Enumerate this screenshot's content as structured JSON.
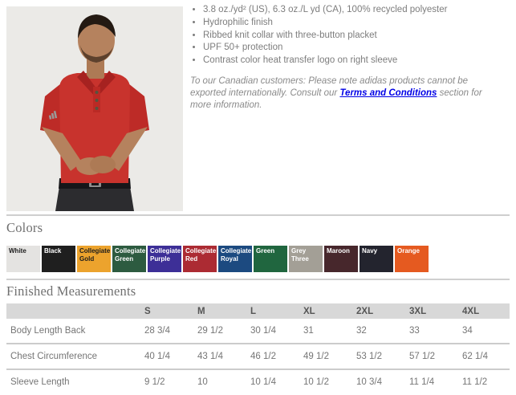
{
  "theme": {
    "link_color": "#0000e6",
    "table_header_bg": "#d8d8d8",
    "rule_color": "#cfcfcf",
    "heading_color": "#707070",
    "body_text_color": "#7d7d7d"
  },
  "product": {
    "photo": {
      "description": "Male model wearing red polo shirt with three-button placket",
      "shirt_color": "#c8332d",
      "background_color": "#ebeae7"
    },
    "features": [
      "3.8 oz./yd² (US), 6.3 oz./L yd (CA), 100% recycled polyester",
      "Hydrophilic finish",
      "Ribbed knit collar with three-button placket",
      "UPF 50+ protection",
      "Contrast color heat transfer logo on right sleeve"
    ],
    "note": {
      "pre": "To our Canadian customers: Please note adidas products cannot be exported internationally. Consult our ",
      "link": "Terms and Conditions",
      "post": " section for more information."
    }
  },
  "colors_section": {
    "title": "Colors",
    "swatches": [
      {
        "label": "White",
        "bg": "#e4e3e1",
        "text_color": "#1c1c1c"
      },
      {
        "label": "Black",
        "bg": "#1f1f1f",
        "text_color": "#ffffff"
      },
      {
        "label": "Collegiate Gold",
        "bg": "#eca32d",
        "text_color": "#1c1c1c"
      },
      {
        "label": "Collegiate Green",
        "bg": "#2d5b40",
        "text_color": "#ffffff"
      },
      {
        "label": "Collegiate Purple",
        "bg": "#3d2f97",
        "text_color": "#ffffff"
      },
      {
        "label": "Collegiate Red",
        "bg": "#ac2b33",
        "text_color": "#ffffff"
      },
      {
        "label": "Collegiate Royal",
        "bg": "#1c4a80",
        "text_color": "#ffffff"
      },
      {
        "label": "Green",
        "bg": "#20663f",
        "text_color": "#ffffff"
      },
      {
        "label": "Grey Three",
        "bg": "#a39f96",
        "text_color": "#ffffff"
      },
      {
        "label": "Maroon",
        "bg": "#47272c",
        "text_color": "#ffffff"
      },
      {
        "label": "Navy",
        "bg": "#23242e",
        "text_color": "#ffffff"
      },
      {
        "label": "Orange",
        "bg": "#e55a20",
        "text_color": "#ffffff"
      }
    ]
  },
  "measurements": {
    "title": "Finished Measurements",
    "size_columns": [
      "S",
      "M",
      "L",
      "XL",
      "2XL",
      "3XL",
      "4XL"
    ],
    "rows": [
      {
        "label": "Body Length Back",
        "values": [
          "28 3/4",
          "29 1/2",
          "30 1/4",
          "31",
          "32",
          "33",
          "34"
        ]
      },
      {
        "label": "Chest Circumference",
        "values": [
          "40 1/4",
          "43 1/4",
          "46 1/2",
          "49 1/2",
          "53 1/2",
          "57 1/2",
          "62 1/4"
        ]
      },
      {
        "label": "Sleeve Length",
        "values": [
          "9 1/2",
          "10",
          "10 1/4",
          "10 1/2",
          "10 3/4",
          "11 1/4",
          "11 1/2"
        ]
      }
    ]
  }
}
